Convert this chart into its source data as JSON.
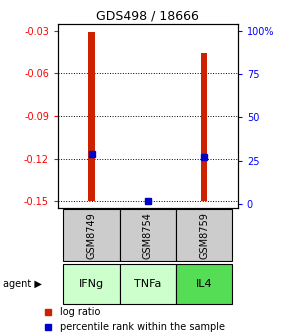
{
  "title": "GDS498 / 18666",
  "samples": [
    "GSM8749",
    "GSM8754",
    "GSM8759"
  ],
  "agents": [
    "IFNg",
    "TNFa",
    "IL4"
  ],
  "log_ratios": [
    -0.031,
    -0.148,
    -0.046
  ],
  "percentile_ranks": [
    29,
    2,
    27
  ],
  "bar_bottom": -0.15,
  "ylim_left": [
    -0.155,
    -0.025
  ],
  "ylim_right": [
    -2.5,
    104.17
  ],
  "yticks_left": [
    -0.15,
    -0.12,
    -0.09,
    -0.06,
    -0.03
  ],
  "yticks_right": [
    0,
    25,
    50,
    75,
    100
  ],
  "bar_color": "#cc2200",
  "percentile_color": "#0000cc",
  "agent_colors_map": {
    "IFNg": "#ccffcc",
    "TNFa": "#ccffcc",
    "IL4": "#55dd55"
  },
  "sample_box_color": "#cccccc",
  "legend_entries": [
    "log ratio",
    "percentile rank within the sample"
  ],
  "agent_label": "agent"
}
